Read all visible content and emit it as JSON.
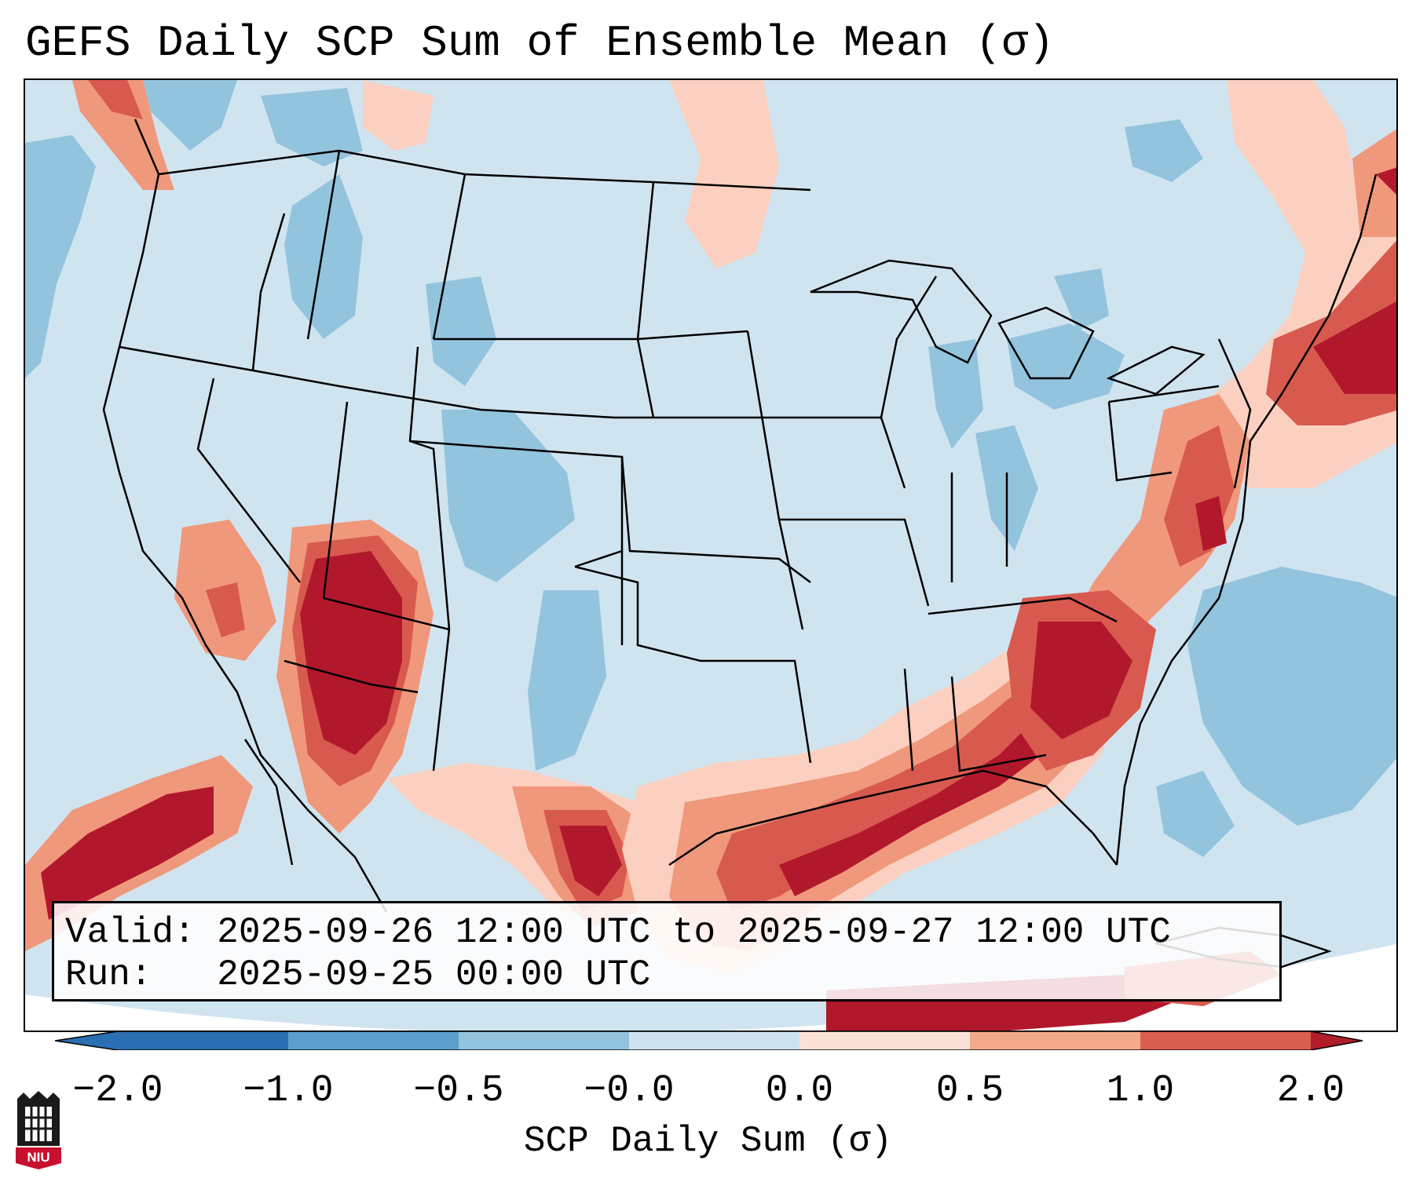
{
  "title": "GEFS Daily SCP Sum of Ensemble Mean (σ)",
  "info": {
    "valid_line": "Valid: 2025-09-26 12:00 UTC to 2025-09-27 12:00 UTC",
    "run_line": "Run:   2025-09-25 00:00 UTC"
  },
  "colorbar": {
    "label": "SCP Daily Sum (σ)",
    "ticks": [
      "−2.0",
      "−1.0",
      "−0.5",
      "−0.0",
      "0.0",
      "0.5",
      "1.0",
      "2.0"
    ],
    "colors": [
      "#2b6fb3",
      "#5b9fcd",
      "#93c4de",
      "#cfe3ef",
      "#fbe2d8",
      "#f3a98b",
      "#d95f51",
      "#b21d2b"
    ],
    "extend": "both"
  },
  "map": {
    "region": "Contiguous United States",
    "colors": {
      "background": "#d0e4f0",
      "light_blue": "#93c4de",
      "light_red": "#fbd0c0",
      "salmon": "#f0987c",
      "red": "#d85a4e",
      "dark_red": "#b2182b"
    }
  },
  "logo": {
    "text": "NIU",
    "name": "niu-logo"
  }
}
